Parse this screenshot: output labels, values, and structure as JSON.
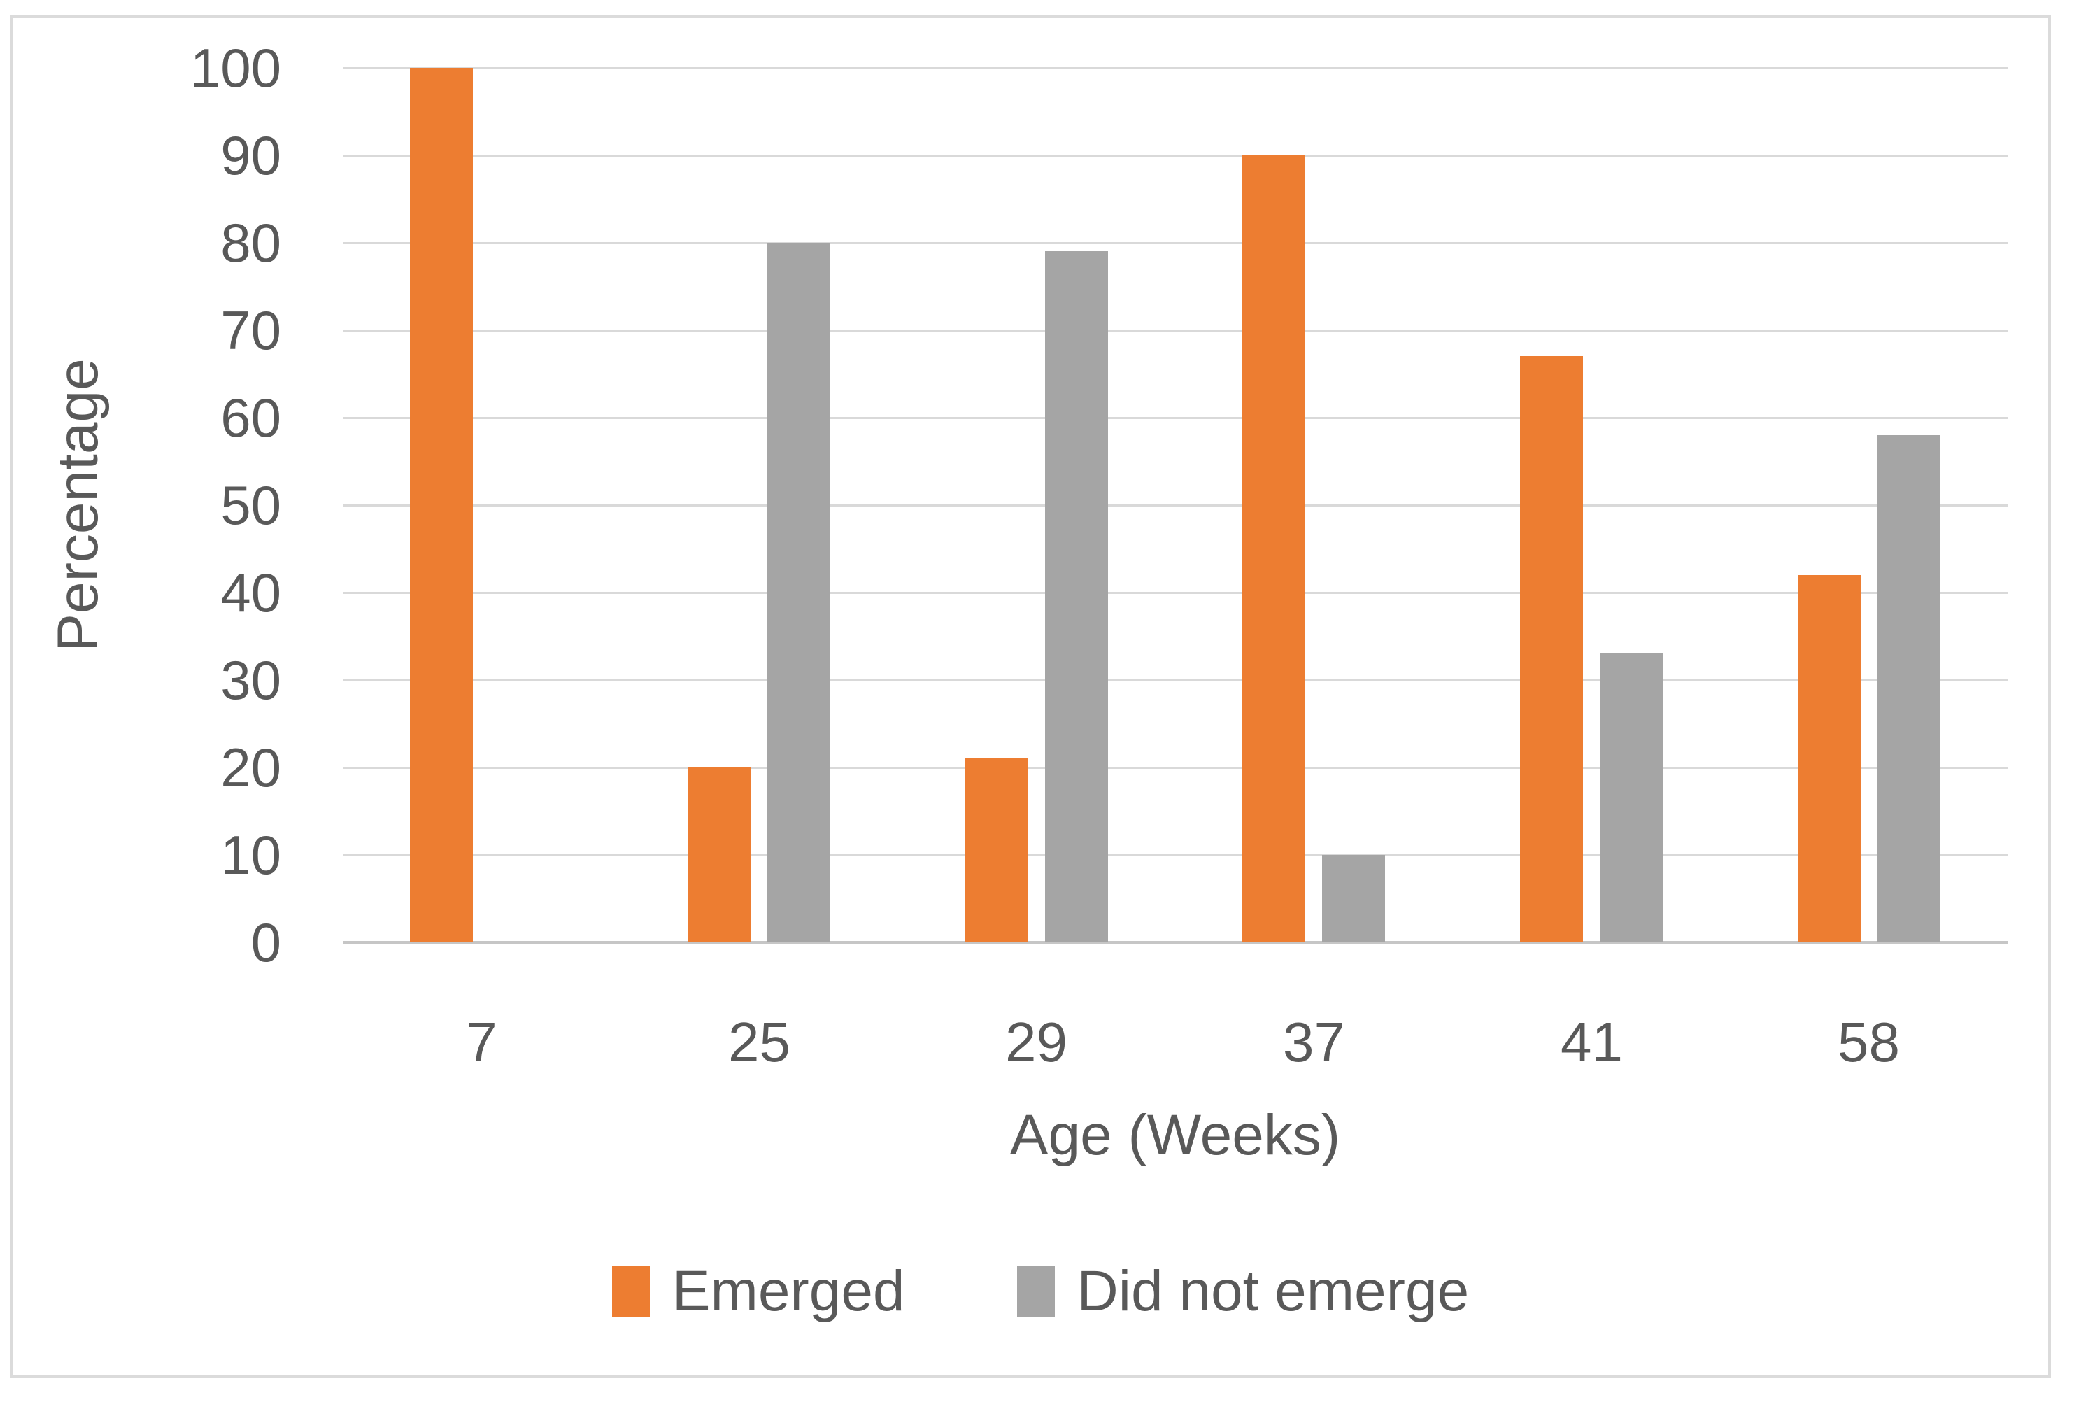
{
  "chart_data": {
    "type": "bar",
    "categories": [
      "7",
      "25",
      "29",
      "37",
      "41",
      "58"
    ],
    "series": [
      {
        "name": "Emerged",
        "color": "#ED7D31",
        "values": [
          100,
          20,
          21,
          90,
          67,
          42
        ]
      },
      {
        "name": "Did not emerge",
        "color": "#A5A5A5",
        "values": [
          0,
          80,
          79,
          10,
          33,
          58
        ]
      }
    ],
    "title": "",
    "xlabel": "Age (Weeks)",
    "ylabel": "Percentage",
    "ylim": [
      0,
      100
    ],
    "ytick_step": 10,
    "ytick_labels": [
      "0",
      "10",
      "20",
      "30",
      "40",
      "50",
      "60",
      "70",
      "80",
      "90",
      "100"
    ],
    "grid": true,
    "legend_position": "bottom"
  },
  "colors": {
    "gridline": "#D9D9D9",
    "axis_line": "#C6C6C6",
    "text": "#595959",
    "chart_border": "#DBDBDB",
    "background": "#FFFFFF"
  }
}
